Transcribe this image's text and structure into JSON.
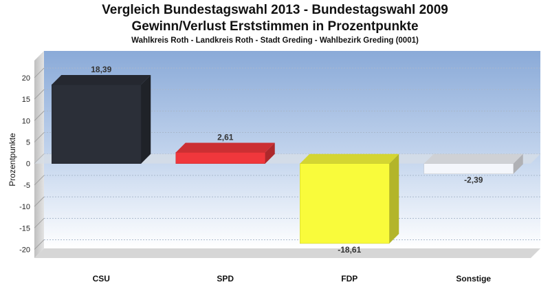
{
  "chart_data": {
    "type": "bar",
    "title": "Vergleich Bundestagswahl 2013  - Bundestagswahl 2009",
    "title2": "Gewinn/Verlust Erststimmen in Prozentpunkte",
    "subtitle": "Wahlkreis Roth - Landkreis Roth - Stadt Greding - Wahlbezirk Greding (0001)",
    "ylabel": "Prozentpunkte",
    "xlabel": "",
    "categories": [
      "CSU",
      "SPD",
      "FDP",
      "Sonstige"
    ],
    "values": [
      18.39,
      2.61,
      -18.61,
      -2.39
    ],
    "value_labels": [
      "18,39",
      "2,61",
      "-18,61",
      "-2,39"
    ],
    "colors": [
      "#2b2f38",
      "#f0373c",
      "#f9fb3b",
      "#f4f6fb"
    ],
    "ylim": [
      -22,
      24
    ],
    "yticks": [
      20,
      15,
      10,
      5,
      0,
      -5,
      -10,
      -15,
      -20
    ],
    "grid": true,
    "legend": "none"
  }
}
